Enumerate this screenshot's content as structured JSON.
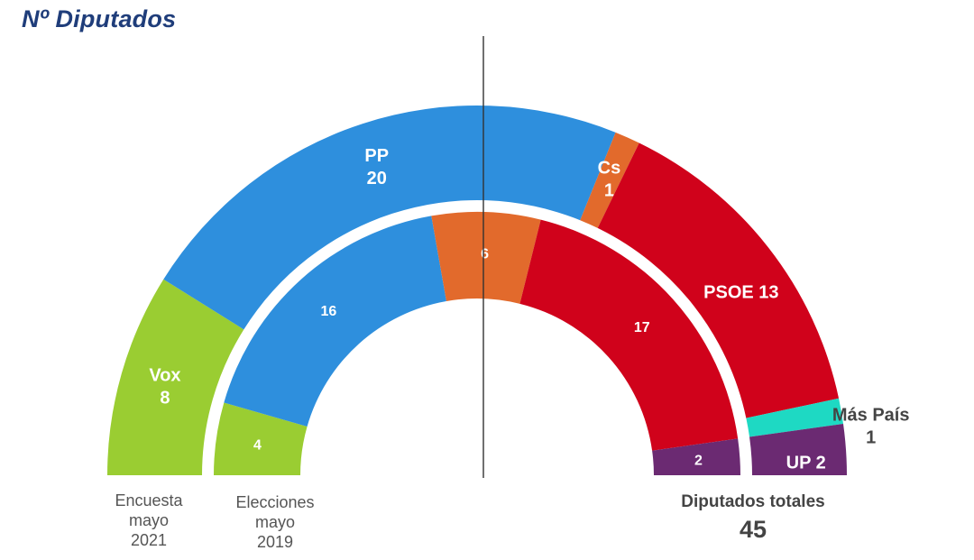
{
  "page": {
    "title": "Nº Diputados",
    "total_label": "Diputados totales",
    "total_value": "45"
  },
  "chart_data": [
    {
      "type": "pie",
      "name": "Encuesta mayo 2021",
      "caption": [
        "Encuesta",
        "mayo",
        "2021"
      ],
      "slices": [
        {
          "label": "Vox",
          "value": 8,
          "color": "#9ACD32"
        },
        {
          "label": "PP",
          "value": 20,
          "color": "#2E8FDD"
        },
        {
          "label": "Cs",
          "value": 1,
          "color": "#E26A2C"
        },
        {
          "label": "PSOE",
          "value": 13,
          "color": "#D0021B"
        },
        {
          "label": "Más País",
          "value": 1,
          "color": "#1ED9C3"
        },
        {
          "label": "UP",
          "value": 2,
          "color": "#6B2A72"
        }
      ],
      "slice_labels": {
        "Vox": [
          "Vox",
          "8"
        ],
        "PP": [
          "PP",
          "20"
        ],
        "Cs": [
          "Cs",
          "1"
        ],
        "PSOE": [
          "PSOE 13"
        ],
        "Más País": [
          "Más País",
          "1"
        ],
        "UP": [
          "UP 2"
        ]
      }
    },
    {
      "type": "pie",
      "name": "Elecciones mayo 2019",
      "caption": [
        "Elecciones",
        "mayo",
        "2019"
      ],
      "slices": [
        {
          "label": "Vox",
          "value": 4,
          "color": "#9ACD32"
        },
        {
          "label": "PP",
          "value": 16,
          "color": "#2E8FDD"
        },
        {
          "label": "Cs",
          "value": 6,
          "color": "#E26A2C"
        },
        {
          "label": "PSOE",
          "value": 17,
          "color": "#D0021B"
        },
        {
          "label": "UP",
          "value": 2,
          "color": "#6B2A72"
        }
      ]
    }
  ]
}
